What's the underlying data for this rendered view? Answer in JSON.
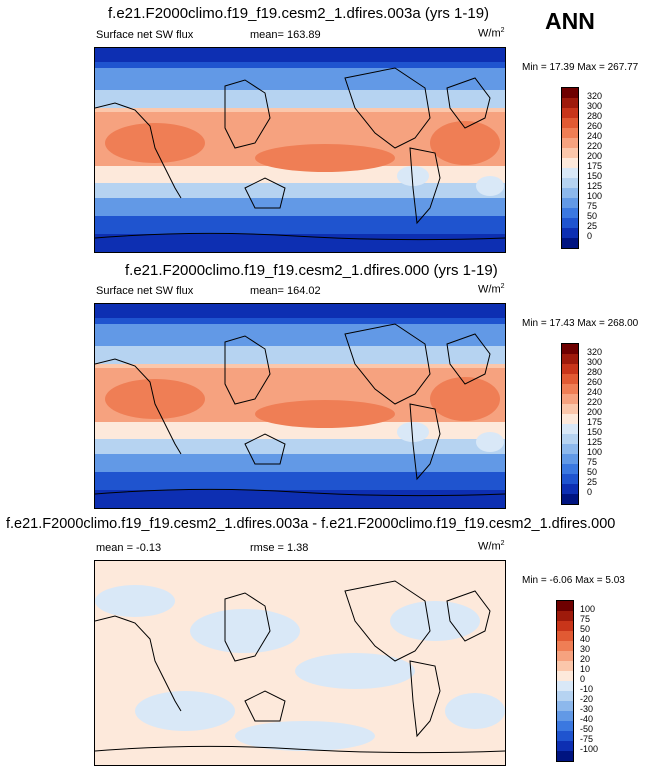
{
  "header": {
    "season": "ANN"
  },
  "panels": [
    {
      "title": "f.e21.F2000climo.f19_f19.cesm2_1.dfires.003a (yrs 1-19)",
      "left_label": "Surface net SW flux",
      "center_label": "mean= 163.89",
      "units": "W/m",
      "units_sup": "2",
      "minmax": "Min = 17.39 Max = 267.77",
      "levels": [
        "320",
        "300",
        "280",
        "260",
        "240",
        "220",
        "200",
        "175",
        "150",
        "125",
        "100",
        "75",
        "50",
        "25",
        "0"
      ],
      "colors": [
        "#6e0000",
        "#9e1a0b",
        "#c8351a",
        "#e15a33",
        "#ef7e55",
        "#f6a27f",
        "#fbc7ab",
        "#fde9db",
        "#d9e8f7",
        "#b6d3f1",
        "#8db8ec",
        "#6299e6",
        "#3b78e0",
        "#1f54cf",
        "#0d2fb2",
        "#001480"
      ]
    },
    {
      "title": "f.e21.F2000climo.f19_f19.cesm2_1.dfires.000 (yrs 1-19)",
      "left_label": "Surface net SW flux",
      "center_label": "mean= 164.02",
      "units": "W/m",
      "units_sup": "2",
      "minmax": "Min = 17.43 Max = 268.00",
      "levels": [
        "320",
        "300",
        "280",
        "260",
        "240",
        "220",
        "200",
        "175",
        "150",
        "125",
        "100",
        "75",
        "50",
        "25",
        "0"
      ],
      "colors": [
        "#6e0000",
        "#9e1a0b",
        "#c8351a",
        "#e15a33",
        "#ef7e55",
        "#f6a27f",
        "#fbc7ab",
        "#fde9db",
        "#d9e8f7",
        "#b6d3f1",
        "#8db8ec",
        "#6299e6",
        "#3b78e0",
        "#1f54cf",
        "#0d2fb2",
        "#001480"
      ]
    },
    {
      "title": "f.e21.F2000climo.f19_f19.cesm2_1.dfires.003a - f.e21.F2000climo.f19_f19.cesm2_1.dfires.000",
      "left_label": "mean =  -0.13",
      "center_label": "rmse =  1.38",
      "units": "W/m",
      "units_sup": "2",
      "minmax": "Min = -6.06 Max =  5.03",
      "levels": [
        "100",
        "75",
        "50",
        "40",
        "30",
        "20",
        "10",
        "0",
        "-10",
        "-20",
        "-30",
        "-40",
        "-50",
        "-75",
        "-100"
      ],
      "colors": [
        "#6e0000",
        "#9e1a0b",
        "#c8351a",
        "#e15a33",
        "#ef7e55",
        "#f6a27f",
        "#fbc7ab",
        "#fde9db",
        "#d9e8f7",
        "#b6d3f1",
        "#8db8ec",
        "#6299e6",
        "#3b78e0",
        "#1f54cf",
        "#0d2fb2",
        "#001480"
      ]
    }
  ]
}
